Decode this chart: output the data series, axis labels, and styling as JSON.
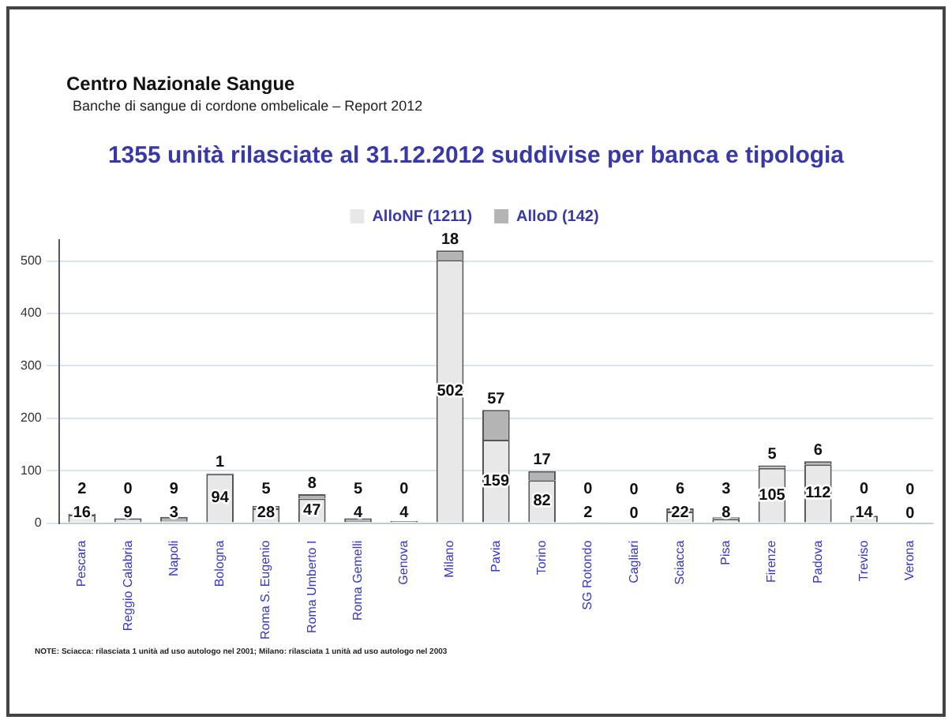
{
  "chart_data": {
    "type": "bar",
    "title": "1355 unità rilasciate al 31.12.2012 suddivise per banca e tipologia",
    "annotations": [
      "Centro Nazionale Sangue",
      "Banche di sangue di cordone ombelicale – Report 2012",
      "NOTE: Sciacca: rilasciata 1 unità ad uso autologo nel 2001; Milano: rilasciata 1 unità ad uso autologo nel 2003"
    ],
    "categories": [
      "Pescara",
      "Reggio Calabria",
      "Napoli",
      "Bologna",
      "Roma S. Eugenio",
      "Roma Umberto I",
      "Roma Gemelli",
      "Genova",
      "Milano",
      "Pavia",
      "Torino",
      "SG Rotondo",
      "Cagliari",
      "Sciacca",
      "Pisa",
      "Firenze",
      "Padova",
      "Treviso",
      "Verona"
    ],
    "stacked": true,
    "series": [
      {
        "name": "AlloNF (1211)",
        "color": "#e8e8e8",
        "values": [
          16,
          9,
          3,
          94,
          28,
          47,
          4,
          4,
          502,
          159,
          82,
          2,
          0,
          22,
          8,
          105,
          112,
          14,
          0
        ]
      },
      {
        "name": "AlloD (142)",
        "color": "#b4b4b4",
        "values": [
          2,
          0,
          9,
          1,
          5,
          8,
          5,
          0,
          18,
          57,
          17,
          0,
          0,
          6,
          3,
          5,
          6,
          0,
          0
        ]
      }
    ],
    "ylim": [
      0,
      540
    ],
    "yticks": [
      0,
      100,
      200,
      300,
      400,
      500
    ],
    "grid": "y",
    "legend": "top",
    "data_labels": true
  }
}
